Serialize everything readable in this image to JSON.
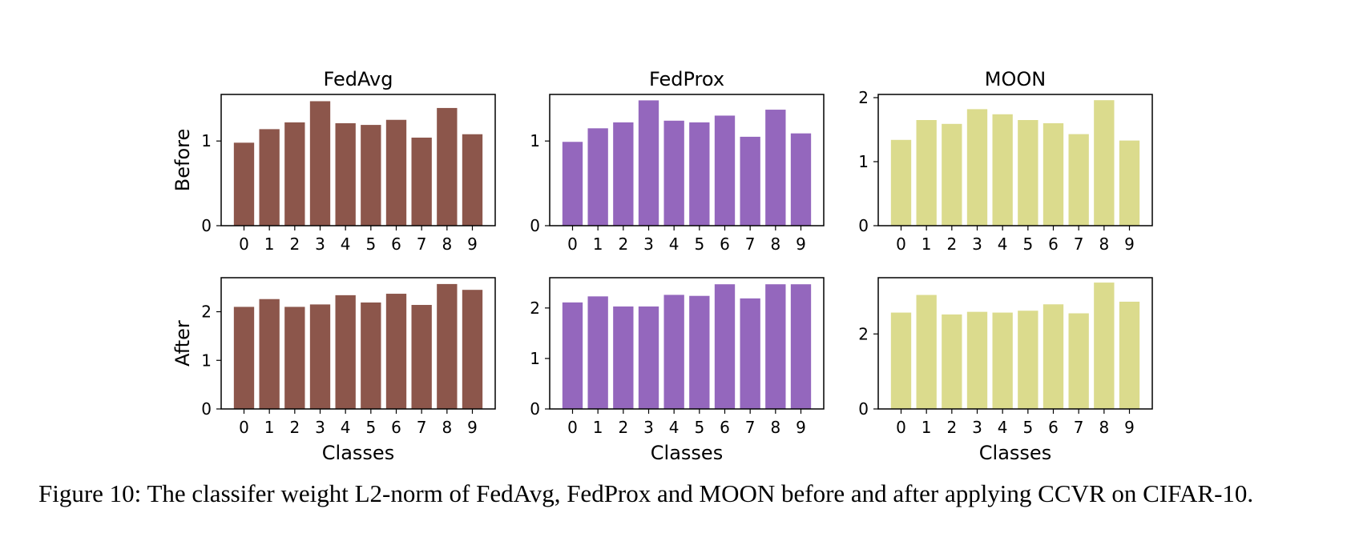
{
  "chart_data": [
    {
      "type": "bar",
      "title": "FedAvg",
      "ylabel": "Before",
      "xlabel": "",
      "categories": [
        "0",
        "1",
        "2",
        "3",
        "4",
        "5",
        "6",
        "7",
        "8",
        "9"
      ],
      "values": [
        0.98,
        1.14,
        1.22,
        1.47,
        1.21,
        1.19,
        1.25,
        1.04,
        1.39,
        1.08
      ],
      "ylim": [
        0,
        1.55
      ],
      "yticks": [
        0,
        1
      ],
      "color": "#8c564b"
    },
    {
      "type": "bar",
      "title": "FedProx",
      "ylabel": "",
      "xlabel": "",
      "categories": [
        "0",
        "1",
        "2",
        "3",
        "4",
        "5",
        "6",
        "7",
        "8",
        "9"
      ],
      "values": [
        0.99,
        1.15,
        1.22,
        1.48,
        1.24,
        1.22,
        1.3,
        1.05,
        1.37,
        1.09
      ],
      "ylim": [
        0,
        1.55
      ],
      "yticks": [
        0,
        1
      ],
      "color": "#9467bd"
    },
    {
      "type": "bar",
      "title": "MOON",
      "ylabel": "",
      "xlabel": "",
      "categories": [
        "0",
        "1",
        "2",
        "3",
        "4",
        "5",
        "6",
        "7",
        "8",
        "9"
      ],
      "values": [
        1.34,
        1.65,
        1.59,
        1.82,
        1.74,
        1.65,
        1.6,
        1.43,
        1.96,
        1.33
      ],
      "ylim": [
        0,
        2.05
      ],
      "yticks": [
        0,
        1,
        2
      ],
      "color": "#dbdb8d"
    },
    {
      "type": "bar",
      "title": "",
      "ylabel": "After",
      "xlabel": "Classes",
      "categories": [
        "0",
        "1",
        "2",
        "3",
        "4",
        "5",
        "6",
        "7",
        "8",
        "9"
      ],
      "values": [
        2.1,
        2.26,
        2.1,
        2.15,
        2.34,
        2.19,
        2.37,
        2.14,
        2.57,
        2.45
      ],
      "ylim": [
        0,
        2.7
      ],
      "yticks": [
        0,
        1,
        2
      ],
      "color": "#8c564b"
    },
    {
      "type": "bar",
      "title": "",
      "ylabel": "",
      "xlabel": "Classes",
      "categories": [
        "0",
        "1",
        "2",
        "3",
        "4",
        "5",
        "6",
        "7",
        "8",
        "9"
      ],
      "values": [
        2.11,
        2.23,
        2.03,
        2.03,
        2.26,
        2.24,
        2.47,
        2.19,
        2.47,
        2.47
      ],
      "ylim": [
        0,
        2.6
      ],
      "yticks": [
        0,
        1,
        2
      ],
      "color": "#9467bd"
    },
    {
      "type": "bar",
      "title": "",
      "ylabel": "",
      "xlabel": "Classes",
      "categories": [
        "0",
        "1",
        "2",
        "3",
        "4",
        "5",
        "6",
        "7",
        "8",
        "9"
      ],
      "values": [
        2.57,
        3.04,
        2.52,
        2.59,
        2.57,
        2.62,
        2.79,
        2.55,
        3.37,
        2.86
      ],
      "ylim": [
        0,
        3.5
      ],
      "yticks": [
        0,
        2
      ],
      "color": "#dbdb8d"
    }
  ],
  "caption": "Figure 10: The classifer weight L2-norm of FedAvg, FedProx and MOON before and after applying CCVR on CIFAR-10."
}
